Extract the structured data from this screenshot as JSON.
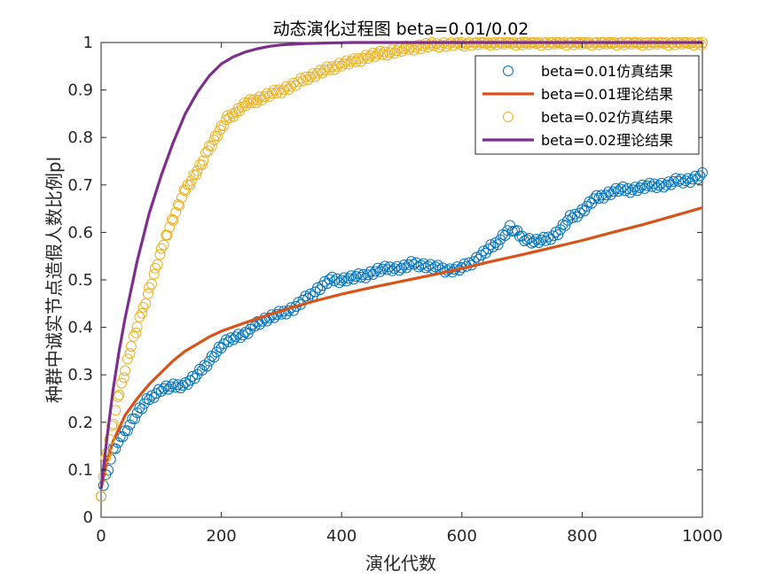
{
  "chart_data": {
    "type": "scatter",
    "title": "动态演化过程图 beta=0.01/0.02",
    "xlabel": "演化代数",
    "ylabel": "种群中诚实节点造假人数比例pl",
    "xlim": [
      0,
      1000
    ],
    "ylim": [
      0,
      1
    ],
    "x_ticks": [
      "0",
      "200",
      "400",
      "600",
      "800",
      "1000"
    ],
    "y_ticks": [
      "0",
      "0.1",
      "0.2",
      "0.3",
      "0.4",
      "0.5",
      "0.6",
      "0.7",
      "0.8",
      "0.9",
      "1"
    ],
    "grid": false,
    "legend_position": "top-right",
    "series": [
      {
        "name": "beta=0.01仿真结果",
        "kind": "markers",
        "color": "#0072BD",
        "x": [
          0,
          20,
          40,
          60,
          80,
          100,
          120,
          140,
          160,
          180,
          200,
          220,
          240,
          260,
          280,
          300,
          320,
          340,
          360,
          380,
          400,
          420,
          440,
          460,
          480,
          500,
          520,
          540,
          560,
          580,
          600,
          620,
          640,
          660,
          680,
          700,
          720,
          740,
          760,
          780,
          800,
          820,
          840,
          860,
          880,
          900,
          920,
          940,
          960,
          980,
          1000
        ],
        "y": [
          0.05,
          0.14,
          0.18,
          0.22,
          0.25,
          0.27,
          0.275,
          0.28,
          0.3,
          0.33,
          0.36,
          0.38,
          0.385,
          0.41,
          0.42,
          0.43,
          0.44,
          0.46,
          0.48,
          0.5,
          0.5,
          0.505,
          0.51,
          0.52,
          0.525,
          0.525,
          0.535,
          0.53,
          0.525,
          0.52,
          0.525,
          0.54,
          0.56,
          0.58,
          0.61,
          0.59,
          0.58,
          0.585,
          0.6,
          0.63,
          0.645,
          0.67,
          0.68,
          0.69,
          0.69,
          0.695,
          0.7,
          0.7,
          0.71,
          0.71,
          0.72
        ]
      },
      {
        "name": "beta=0.01理论结果",
        "kind": "line",
        "color": "#D95319",
        "x": [
          0,
          10,
          20,
          40,
          60,
          80,
          100,
          120,
          140,
          160,
          180,
          200,
          240,
          280,
          320,
          360,
          400,
          450,
          500,
          550,
          600,
          650,
          700,
          750,
          800,
          850,
          900,
          950,
          1000
        ],
        "y": [
          0.06,
          0.12,
          0.16,
          0.215,
          0.25,
          0.28,
          0.305,
          0.33,
          0.35,
          0.365,
          0.38,
          0.392,
          0.41,
          0.427,
          0.443,
          0.457,
          0.47,
          0.484,
          0.497,
          0.51,
          0.524,
          0.539,
          0.553,
          0.568,
          0.583,
          0.6,
          0.616,
          0.634,
          0.652
        ]
      },
      {
        "name": "beta=0.02仿真结果",
        "kind": "markers",
        "color": "#EDB120",
        "x": [
          0,
          10,
          20,
          30,
          40,
          50,
          60,
          70,
          80,
          90,
          100,
          110,
          120,
          130,
          140,
          150,
          160,
          170,
          180,
          190,
          200,
          210,
          220,
          230,
          240,
          250,
          260,
          280,
          300,
          320,
          340,
          360,
          380,
          400,
          420,
          440,
          460,
          480,
          500,
          520,
          550,
          600,
          650,
          700,
          750,
          800,
          850,
          900,
          950,
          1000
        ],
        "y": [
          0.05,
          0.14,
          0.2,
          0.26,
          0.31,
          0.36,
          0.4,
          0.44,
          0.48,
          0.52,
          0.56,
          0.6,
          0.63,
          0.66,
          0.69,
          0.71,
          0.73,
          0.75,
          0.78,
          0.8,
          0.82,
          0.84,
          0.85,
          0.86,
          0.87,
          0.875,
          0.88,
          0.89,
          0.9,
          0.91,
          0.925,
          0.935,
          0.945,
          0.955,
          0.96,
          0.97,
          0.975,
          0.98,
          0.985,
          0.99,
          0.995,
          0.998,
          1.0,
          1.0,
          1.0,
          1.0,
          1.0,
          1.0,
          1.0,
          1.0
        ]
      },
      {
        "name": "beta=0.02理论结果",
        "kind": "line",
        "color": "#7E2F8E",
        "x": [
          0,
          10,
          20,
          30,
          40,
          60,
          80,
          100,
          120,
          140,
          160,
          180,
          200,
          220,
          240,
          260,
          280,
          300,
          340,
          380,
          420,
          500,
          600,
          700,
          800,
          900,
          1000
        ],
        "y": [
          0.06,
          0.17,
          0.27,
          0.35,
          0.42,
          0.54,
          0.64,
          0.72,
          0.79,
          0.85,
          0.895,
          0.93,
          0.955,
          0.97,
          0.98,
          0.987,
          0.992,
          0.995,
          0.998,
          0.999,
          1.0,
          1.0,
          1.0,
          1.0,
          1.0,
          1.0,
          1.0
        ]
      }
    ]
  }
}
